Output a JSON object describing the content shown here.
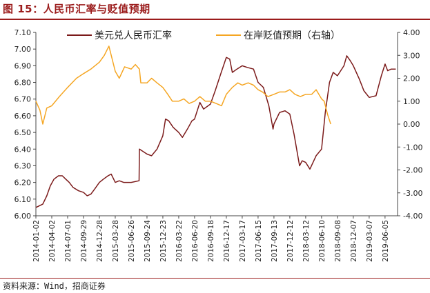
{
  "figure": {
    "title": "图 15：人民币汇率与贬值预期",
    "source": "资料来源：Wind，招商证券"
  },
  "colors": {
    "title_red": "#9b1c1c",
    "series_cny": "#7b1a1a",
    "series_expect": "#f5a623",
    "axis": "#444444"
  },
  "chart_data": {
    "type": "line",
    "legend_position": "top-center",
    "grid": false,
    "y_left": {
      "min": 6.0,
      "max": 7.1,
      "ticks": [
        "6.00",
        "6.10",
        "6.20",
        "6.30",
        "6.40",
        "6.50",
        "6.60",
        "6.70",
        "6.80",
        "6.90",
        "7.00",
        "7.10"
      ]
    },
    "y_right": {
      "min": -4.0,
      "max": 4.0,
      "ticks": [
        "-4.00",
        "-3.00",
        "-2.00",
        "-1.00",
        "0.00",
        "1.00",
        "2.00",
        "3.00",
        "4.00"
      ]
    },
    "x_range": [
      "2014-01-02",
      "2019-08-15"
    ],
    "x_ticks": [
      "2014-01-02",
      "2014-04-02",
      "2014-07-01",
      "2014-09-29",
      "2014-12-28",
      "2015-03-28",
      "2015-06-26",
      "2015-09-24",
      "2015-12-23",
      "2016-03-22",
      "2016-06-20",
      "2016-09-18",
      "2016-12-17",
      "2017-03-17",
      "2017-06-15",
      "2017-09-13",
      "2017-12-12",
      "2018-03-12",
      "2018-06-10",
      "2018-09-08",
      "2018-12-07",
      "2019-03-07",
      "2019-06-05"
    ],
    "series": [
      {
        "name": "美元兑人民币汇率",
        "axis": "left",
        "points": [
          [
            "2014-01-02",
            6.05
          ],
          [
            "2014-02-10",
            6.07
          ],
          [
            "2014-03-05",
            6.12
          ],
          [
            "2014-03-25",
            6.18
          ],
          [
            "2014-04-15",
            6.22
          ],
          [
            "2014-05-10",
            6.24
          ],
          [
            "2014-06-01",
            6.24
          ],
          [
            "2014-06-20",
            6.22
          ],
          [
            "2014-07-10",
            6.2
          ],
          [
            "2014-08-01",
            6.17
          ],
          [
            "2014-09-01",
            6.15
          ],
          [
            "2014-09-29",
            6.14
          ],
          [
            "2014-10-20",
            6.12
          ],
          [
            "2014-11-10",
            6.13
          ],
          [
            "2014-12-01",
            6.16
          ],
          [
            "2014-12-28",
            6.2
          ],
          [
            "2015-01-20",
            6.22
          ],
          [
            "2015-02-15",
            6.24
          ],
          [
            "2015-03-05",
            6.25
          ],
          [
            "2015-03-28",
            6.2
          ],
          [
            "2015-04-20",
            6.21
          ],
          [
            "2015-05-15",
            6.2
          ],
          [
            "2015-06-26",
            6.2
          ],
          [
            "2015-08-10",
            6.21
          ],
          [
            "2015-08-12",
            6.4
          ],
          [
            "2015-09-24",
            6.37
          ],
          [
            "2015-10-20",
            6.36
          ],
          [
            "2015-11-20",
            6.4
          ],
          [
            "2015-12-23",
            6.48
          ],
          [
            "2016-01-07",
            6.58
          ],
          [
            "2016-01-25",
            6.57
          ],
          [
            "2016-02-20",
            6.53
          ],
          [
            "2016-03-22",
            6.5
          ],
          [
            "2016-04-12",
            6.47
          ],
          [
            "2016-05-10",
            6.52
          ],
          [
            "2016-06-05",
            6.57
          ],
          [
            "2016-06-20",
            6.58
          ],
          [
            "2016-07-20",
            6.68
          ],
          [
            "2016-08-10",
            6.64
          ],
          [
            "2016-09-18",
            6.67
          ],
          [
            "2016-10-15",
            6.75
          ],
          [
            "2016-11-15",
            6.85
          ],
          [
            "2016-12-17",
            6.95
          ],
          [
            "2017-01-05",
            6.94
          ],
          [
            "2017-01-20",
            6.86
          ],
          [
            "2017-02-15",
            6.88
          ],
          [
            "2017-03-17",
            6.9
          ],
          [
            "2017-04-15",
            6.89
          ],
          [
            "2017-05-20",
            6.88
          ],
          [
            "2017-06-15",
            6.8
          ],
          [
            "2017-07-15",
            6.77
          ],
          [
            "2017-08-15",
            6.66
          ],
          [
            "2017-09-08",
            6.52
          ],
          [
            "2017-09-13",
            6.55
          ],
          [
            "2017-10-15",
            6.62
          ],
          [
            "2017-11-15",
            6.63
          ],
          [
            "2017-12-12",
            6.61
          ],
          [
            "2018-01-05",
            6.49
          ],
          [
            "2018-02-05",
            6.3
          ],
          [
            "2018-02-20",
            6.33
          ],
          [
            "2018-03-12",
            6.32
          ],
          [
            "2018-04-05",
            6.28
          ],
          [
            "2018-05-10",
            6.36
          ],
          [
            "2018-06-10",
            6.4
          ],
          [
            "2018-07-01",
            6.62
          ],
          [
            "2018-07-25",
            6.8
          ],
          [
            "2018-08-15",
            6.86
          ],
          [
            "2018-09-08",
            6.84
          ],
          [
            "2018-10-15",
            6.9
          ],
          [
            "2018-10-31",
            6.96
          ],
          [
            "2018-11-20",
            6.93
          ],
          [
            "2018-12-07",
            6.9
          ],
          [
            "2019-01-10",
            6.82
          ],
          [
            "2019-02-05",
            6.75
          ],
          [
            "2019-03-07",
            6.71
          ],
          [
            "2019-04-15",
            6.72
          ],
          [
            "2019-05-15",
            6.84
          ],
          [
            "2019-06-05",
            6.91
          ],
          [
            "2019-06-20",
            6.87
          ],
          [
            "2019-07-10",
            6.88
          ],
          [
            "2019-08-05",
            6.88
          ]
        ]
      },
      {
        "name": "在岸贬值预期（右轴）",
        "axis": "right",
        "points": [
          [
            "2014-01-02",
            1.0
          ],
          [
            "2014-01-25",
            0.6
          ],
          [
            "2014-02-10",
            0.0
          ],
          [
            "2014-03-05",
            0.7
          ],
          [
            "2014-04-02",
            0.8
          ],
          [
            "2014-05-15",
            1.2
          ],
          [
            "2014-07-01",
            1.6
          ],
          [
            "2014-08-20",
            2.0
          ],
          [
            "2014-09-29",
            2.2
          ],
          [
            "2014-11-10",
            2.4
          ],
          [
            "2014-12-28",
            2.7
          ],
          [
            "2015-01-25",
            3.0
          ],
          [
            "2015-02-20",
            3.4
          ],
          [
            "2015-03-28",
            2.3
          ],
          [
            "2015-04-20",
            2.0
          ],
          [
            "2015-05-20",
            2.5
          ],
          [
            "2015-06-26",
            2.4
          ],
          [
            "2015-07-20",
            2.6
          ],
          [
            "2015-08-12",
            2.4
          ],
          [
            "2015-08-20",
            1.8
          ],
          [
            "2015-09-24",
            1.8
          ],
          [
            "2015-10-20",
            2.0
          ],
          [
            "2015-11-20",
            1.8
          ],
          [
            "2015-12-23",
            1.6
          ],
          [
            "2016-01-20",
            1.3
          ],
          [
            "2016-02-15",
            1.0
          ],
          [
            "2016-03-22",
            1.0
          ],
          [
            "2016-04-20",
            1.1
          ],
          [
            "2016-05-20",
            0.9
          ],
          [
            "2016-06-20",
            1.0
          ],
          [
            "2016-07-20",
            1.2
          ],
          [
            "2016-08-20",
            1.0
          ],
          [
            "2016-09-18",
            1.0
          ],
          [
            "2016-10-20",
            0.9
          ],
          [
            "2016-11-20",
            0.8
          ],
          [
            "2016-12-17",
            1.3
          ],
          [
            "2017-01-20",
            1.6
          ],
          [
            "2017-02-20",
            1.8
          ],
          [
            "2017-03-17",
            1.7
          ],
          [
            "2017-04-20",
            1.8
          ],
          [
            "2017-05-20",
            1.7
          ],
          [
            "2017-06-15",
            1.5
          ],
          [
            "2017-07-10",
            1.4
          ],
          [
            "2017-08-10",
            1.2
          ],
          [
            "2017-09-13",
            1.3
          ],
          [
            "2017-10-15",
            1.4
          ],
          [
            "2017-11-15",
            1.4
          ],
          [
            "2017-12-12",
            1.5
          ],
          [
            "2018-01-10",
            1.3
          ],
          [
            "2018-02-10",
            1.2
          ],
          [
            "2018-03-12",
            1.3
          ],
          [
            "2018-04-15",
            1.3
          ],
          [
            "2018-05-10",
            1.5
          ],
          [
            "2018-06-10",
            1.1
          ],
          [
            "2018-06-25",
            1.0
          ],
          [
            "2018-07-15",
            0.4
          ],
          [
            "2018-08-01",
            0.0
          ]
        ]
      }
    ]
  }
}
